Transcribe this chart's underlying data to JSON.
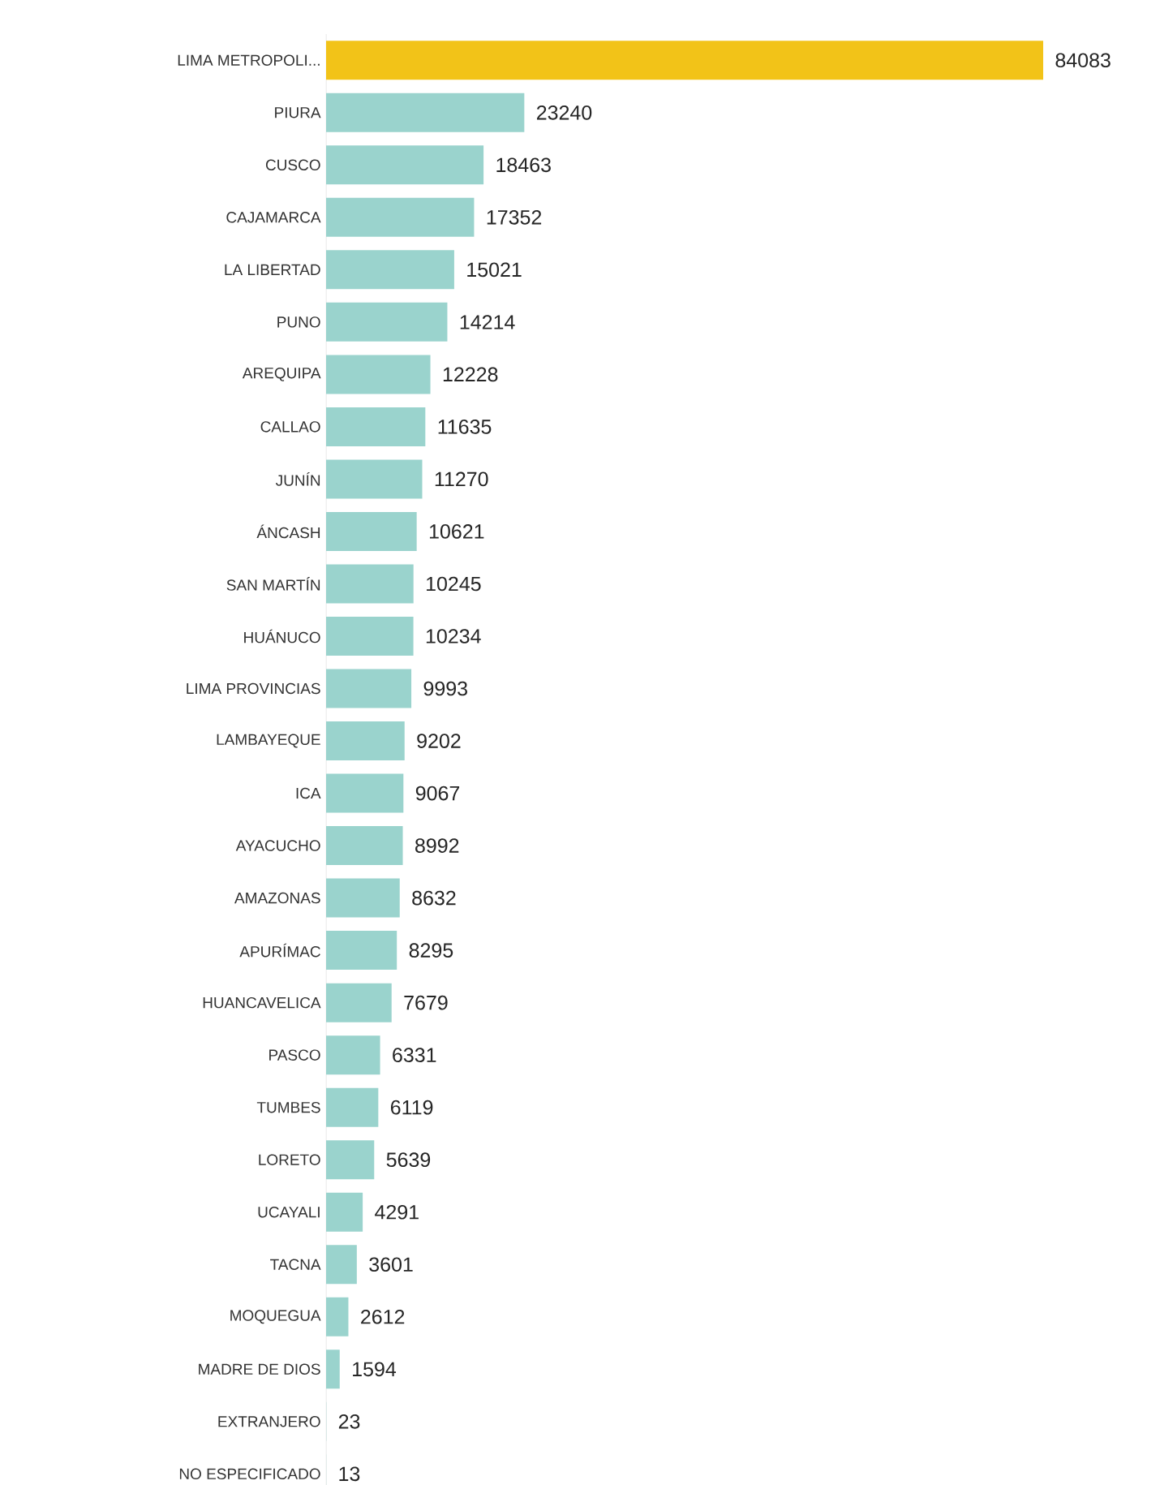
{
  "chart_data": {
    "type": "bar",
    "orientation": "horizontal",
    "data_labels": true,
    "categories": [
      "LIMA METROPOLI...",
      "PIURA",
      "CUSCO",
      "CAJAMARCA",
      "LA LIBERTAD",
      "PUNO",
      "AREQUIPA",
      "CALLAO",
      "JUNÍN",
      "ÁNCASH",
      "SAN MARTÍN",
      "HUÁNUCO",
      "LIMA PROVINCIAS",
      "LAMBAYEQUE",
      "ICA",
      "AYACUCHO",
      "AMAZONAS",
      "APURÍMAC",
      "HUANCAVELICA",
      "PASCO",
      "TUMBES",
      "LORETO",
      "UCAYALI",
      "TACNA",
      "MOQUEGUA",
      "MADRE DE DIOS",
      "EXTRANJERO",
      "NO ESPECIFICADO"
    ],
    "values": [
      84083,
      23240,
      18463,
      17352,
      15021,
      14214,
      12228,
      11635,
      11270,
      10621,
      10245,
      10234,
      9993,
      9202,
      9067,
      8992,
      8632,
      8295,
      7679,
      6331,
      6119,
      5639,
      4291,
      3601,
      2612,
      1594,
      23,
      13
    ],
    "colors": [
      "#f2c318",
      "#9ad3cd",
      "#9ad3cd",
      "#9ad3cd",
      "#9ad3cd",
      "#9ad3cd",
      "#9ad3cd",
      "#9ad3cd",
      "#9ad3cd",
      "#9ad3cd",
      "#9ad3cd",
      "#9ad3cd",
      "#9ad3cd",
      "#9ad3cd",
      "#9ad3cd",
      "#9ad3cd",
      "#9ad3cd",
      "#9ad3cd",
      "#9ad3cd",
      "#9ad3cd",
      "#9ad3cd",
      "#9ad3cd",
      "#9ad3cd",
      "#9ad3cd",
      "#9ad3cd",
      "#9ad3cd",
      "#9ad3cd",
      "#9ad3cd"
    ]
  }
}
